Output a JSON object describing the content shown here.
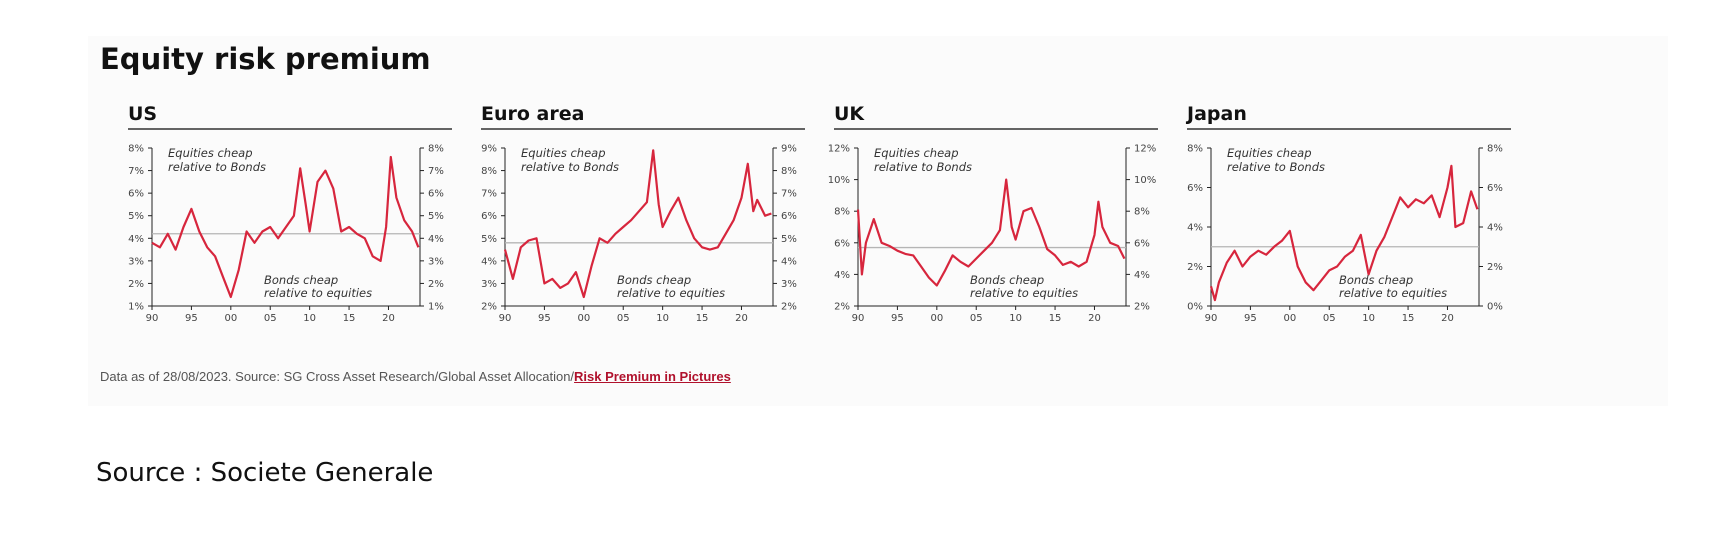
{
  "title": "Equity risk premium",
  "source_note": {
    "text": "Data as of 28/08/2023. Source: SG Cross Asset Research/Global Asset Allocation/",
    "link_text": "Risk Premium in Pictures"
  },
  "page_source": "Source : Societe Generale",
  "colors": {
    "series": "#d7263d",
    "average_line": "#b5b5b5",
    "link": "#b0112c"
  },
  "chart_data": [
    {
      "type": "line",
      "title": "US",
      "x_tick_labels": [
        "90",
        "95",
        "00",
        "05",
        "10",
        "15",
        "20"
      ],
      "x_tick_years": [
        1990,
        1995,
        2000,
        2005,
        2010,
        2015,
        2020
      ],
      "xlim": [
        1990,
        2024
      ],
      "ylim": [
        1,
        8
      ],
      "y_ticks": [
        1,
        2,
        3,
        4,
        5,
        6,
        7,
        8
      ],
      "y_tick_labels": [
        "1%",
        "2%",
        "3%",
        "4%",
        "5%",
        "6%",
        "7%",
        "8%"
      ],
      "average": 4.2,
      "annotations": {
        "top": [
          "Equities cheap",
          "relative to Bonds"
        ],
        "bottom": [
          "Bonds cheap",
          "relative to equities"
        ]
      },
      "series": [
        {
          "x": [
            1990,
            1991,
            1992,
            1993,
            1994,
            1995,
            1996,
            1997,
            1998,
            1999,
            2000,
            2001,
            2002,
            2003,
            2004,
            2005,
            2006,
            2007,
            2008,
            2008.8,
            2009.5,
            2010,
            2011,
            2012,
            2013,
            2014,
            2015,
            2016,
            2017,
            2018,
            2019,
            2019.7,
            2020.3,
            2021,
            2022,
            2023,
            2023.8
          ],
          "values": [
            3.8,
            3.6,
            4.2,
            3.5,
            4.5,
            5.3,
            4.3,
            3.6,
            3.2,
            2.3,
            1.4,
            2.6,
            4.3,
            3.8,
            4.3,
            4.5,
            4.0,
            4.5,
            5.0,
            7.1,
            5.5,
            4.3,
            6.5,
            7.0,
            6.2,
            4.3,
            4.5,
            4.2,
            4.0,
            3.2,
            3.0,
            4.5,
            7.6,
            5.8,
            4.8,
            4.3,
            3.6
          ]
        }
      ]
    },
    {
      "type": "line",
      "title": "Euro area",
      "x_tick_labels": [
        "90",
        "95",
        "00",
        "05",
        "10",
        "15",
        "20"
      ],
      "x_tick_years": [
        1990,
        1995,
        2000,
        2005,
        2010,
        2015,
        2020
      ],
      "xlim": [
        1990,
        2024
      ],
      "ylim": [
        2,
        9
      ],
      "y_ticks": [
        2,
        3,
        4,
        5,
        6,
        7,
        8,
        9
      ],
      "y_tick_labels": [
        "2%",
        "3%",
        "4%",
        "5%",
        "6%",
        "7%",
        "8%",
        "9%"
      ],
      "average": 4.8,
      "annotations": {
        "top": [
          "Equities cheap",
          "relative to Bonds"
        ],
        "bottom": [
          "Bonds cheap",
          "relative to equities"
        ]
      },
      "series": [
        {
          "x": [
            1990,
            1991,
            1992,
            1993,
            1994,
            1995,
            1996,
            1997,
            1998,
            1999,
            2000,
            2001,
            2002,
            2003,
            2004,
            2005,
            2006,
            2007,
            2008,
            2008.8,
            2009.5,
            2010,
            2011,
            2012,
            2013,
            2014,
            2015,
            2016,
            2017,
            2018,
            2019,
            2020,
            2020.8,
            2021.5,
            2022,
            2023,
            2023.8
          ],
          "values": [
            4.5,
            3.2,
            4.6,
            4.9,
            5.0,
            3.0,
            3.2,
            2.8,
            3.0,
            3.5,
            2.4,
            3.8,
            5.0,
            4.8,
            5.2,
            5.5,
            5.8,
            6.2,
            6.6,
            8.9,
            6.5,
            5.5,
            6.2,
            6.8,
            5.8,
            5.0,
            4.6,
            4.5,
            4.6,
            5.2,
            5.8,
            6.8,
            8.3,
            6.2,
            6.7,
            6.0,
            6.1
          ]
        }
      ]
    },
    {
      "type": "line",
      "title": "UK",
      "x_tick_labels": [
        "90",
        "95",
        "00",
        "05",
        "10",
        "15",
        "20"
      ],
      "x_tick_years": [
        1990,
        1995,
        2000,
        2005,
        2010,
        2015,
        2020
      ],
      "xlim": [
        1990,
        2024
      ],
      "ylim": [
        2,
        12
      ],
      "y_ticks": [
        2,
        4,
        6,
        8,
        10,
        12
      ],
      "y_tick_labels": [
        "2%",
        "4%",
        "6%",
        "8%",
        "10%",
        "12%"
      ],
      "average": 5.7,
      "annotations": {
        "top": [
          "Equities cheap",
          "relative to Bonds"
        ],
        "bottom": [
          "Bonds cheap",
          "relative to equities"
        ]
      },
      "series": [
        {
          "x": [
            1990,
            1990.5,
            1991,
            1992,
            1993,
            1994,
            1995,
            1996,
            1997,
            1998,
            1999,
            2000,
            2001,
            2002,
            2003,
            2004,
            2005,
            2006,
            2007,
            2008,
            2008.8,
            2009.5,
            2010,
            2011,
            2012,
            2013,
            2014,
            2015,
            2016,
            2017,
            2018,
            2019,
            2020,
            2020.5,
            2021,
            2022,
            2023,
            2023.8
          ],
          "values": [
            8.1,
            4.0,
            6.0,
            7.5,
            6.0,
            5.8,
            5.5,
            5.3,
            5.2,
            4.5,
            3.8,
            3.3,
            4.2,
            5.2,
            4.8,
            4.5,
            5.0,
            5.5,
            6.0,
            6.8,
            10.0,
            7.0,
            6.2,
            8.0,
            8.2,
            7.0,
            5.6,
            5.2,
            4.6,
            4.8,
            4.5,
            4.8,
            6.5,
            8.6,
            7.0,
            6.0,
            5.8,
            5.0
          ]
        }
      ]
    },
    {
      "type": "line",
      "title": "Japan",
      "x_tick_labels": [
        "90",
        "95",
        "00",
        "05",
        "10",
        "15",
        "20"
      ],
      "x_tick_years": [
        1990,
        1995,
        2000,
        2005,
        2010,
        2015,
        2020
      ],
      "xlim": [
        1990,
        2024
      ],
      "ylim": [
        0,
        8
      ],
      "y_ticks": [
        0,
        2,
        4,
        6,
        8
      ],
      "y_tick_labels": [
        "0%",
        "2%",
        "4%",
        "6%",
        "8%"
      ],
      "average": 3.0,
      "annotations": {
        "top": [
          "Equities cheap",
          "relative to Bonds"
        ],
        "bottom": [
          "Bonds cheap",
          "relative to equities"
        ]
      },
      "series": [
        {
          "x": [
            1990,
            1990.5,
            1991,
            1992,
            1993,
            1994,
            1995,
            1996,
            1997,
            1998,
            1999,
            2000,
            2001,
            2002,
            2003,
            2004,
            2005,
            2006,
            2007,
            2008,
            2009,
            2010,
            2011,
            2012,
            2013,
            2014,
            2015,
            2016,
            2017,
            2018,
            2019,
            2020,
            2020.5,
            2021,
            2022,
            2023,
            2023.8
          ],
          "values": [
            1.0,
            0.3,
            1.2,
            2.2,
            2.8,
            2.0,
            2.5,
            2.8,
            2.6,
            3.0,
            3.3,
            3.8,
            2.0,
            1.2,
            0.8,
            1.3,
            1.8,
            2.0,
            2.5,
            2.8,
            3.6,
            1.6,
            2.8,
            3.5,
            4.5,
            5.5,
            5.0,
            5.4,
            5.2,
            5.6,
            4.5,
            6.0,
            7.1,
            4.0,
            4.2,
            5.8,
            4.9
          ]
        }
      ]
    }
  ]
}
